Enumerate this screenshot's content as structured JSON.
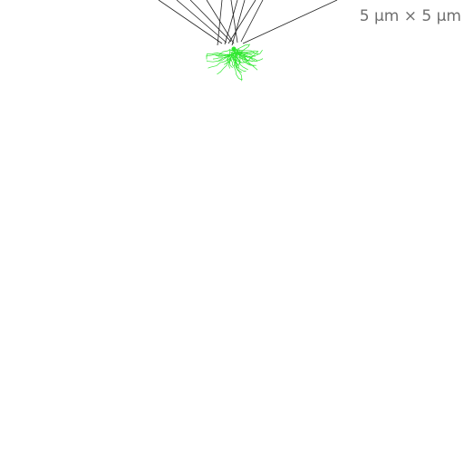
{
  "view": {
    "scale_label": "5 µm × 5 µm"
  },
  "colors": {
    "background": "#ffffff",
    "axon": "#202020",
    "dendrite": "#2ee82e",
    "label": "#6f6f6f"
  }
}
